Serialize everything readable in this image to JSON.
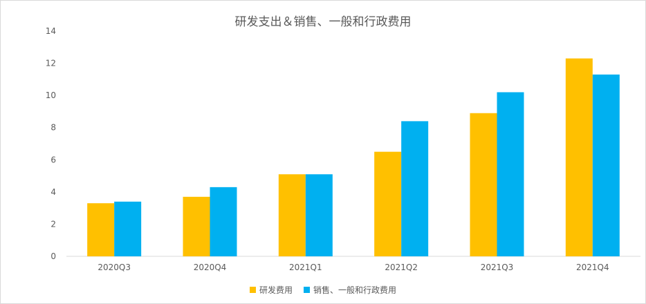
{
  "chart_data": {
    "type": "bar",
    "title": "研发支出＆销售、一般和行政费用",
    "categories": [
      "2020Q3",
      "2020Q4",
      "2021Q1",
      "2021Q2",
      "2021Q3",
      "2021Q4"
    ],
    "series": [
      {
        "name": "研发费用",
        "color": "#FFC000",
        "values": [
          3.3,
          3.7,
          5.1,
          6.5,
          8.9,
          12.3
        ]
      },
      {
        "name": "销售、一般和行政费用",
        "color": "#00B0F0",
        "values": [
          3.4,
          4.3,
          5.1,
          8.4,
          10.2,
          11.3
        ]
      }
    ],
    "ylim": [
      0,
      14
    ],
    "yticks": [
      0,
      2,
      4,
      6,
      8,
      10,
      12,
      14
    ],
    "xlabel": "",
    "ylabel": "",
    "grid": false,
    "legend_position": "bottom"
  }
}
